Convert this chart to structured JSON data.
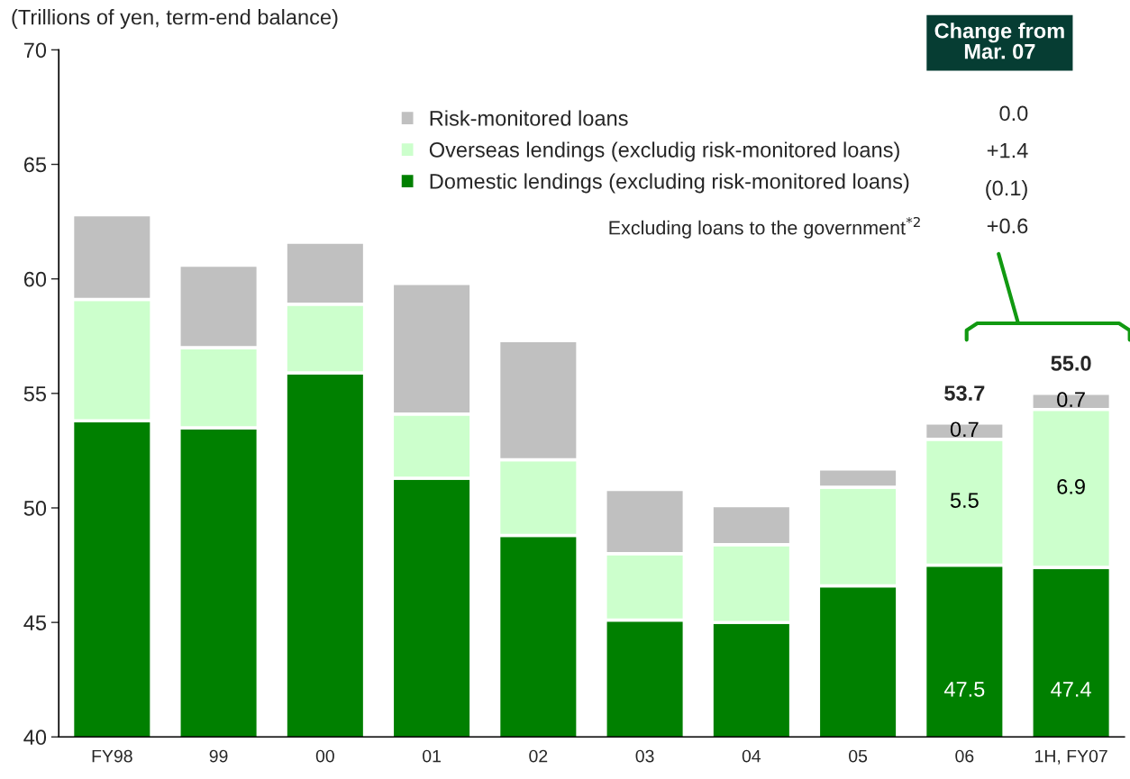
{
  "chart_data": {
    "type": "bar",
    "stacked": true,
    "categories": [
      "FY98",
      "99",
      "00",
      "01",
      "02",
      "03",
      "04",
      "05",
      "06",
      "1H, FY07"
    ],
    "series": [
      {
        "name": "Domestic lendings (excluding risk-monitored loans)",
        "color": "#008000",
        "values": [
          53.8,
          53.5,
          55.9,
          51.3,
          48.8,
          45.1,
          45.0,
          46.6,
          47.5,
          47.4
        ],
        "value_labels": [
          null,
          null,
          null,
          null,
          null,
          null,
          null,
          null,
          "47.5",
          "47.4"
        ]
      },
      {
        "name": "Overseas lendings (excludig risk-monitored loans)",
        "color": "#ccffcc",
        "base": [
          53.8,
          53.5,
          55.9,
          51.3,
          48.8,
          45.1,
          45.0,
          46.6,
          47.5,
          47.4
        ],
        "values": [
          5.3,
          3.5,
          3.0,
          2.8,
          3.3,
          2.9,
          3.4,
          4.3,
          5.5,
          6.9
        ],
        "value_labels": [
          null,
          null,
          null,
          null,
          null,
          null,
          null,
          null,
          "5.5",
          "6.9"
        ]
      },
      {
        "name": "Risk-monitored loans",
        "color": "#c0c0c0",
        "base": [
          59.1,
          57.0,
          58.9,
          54.1,
          52.1,
          48.0,
          48.4,
          50.9,
          53.0,
          54.3
        ],
        "values": [
          3.7,
          3.6,
          2.7,
          5.7,
          5.2,
          2.8,
          1.7,
          0.8,
          0.7,
          0.7
        ],
        "value_labels": [
          null,
          null,
          null,
          null,
          null,
          null,
          null,
          null,
          "0.7",
          "0.7"
        ]
      }
    ],
    "totals": [
      null,
      null,
      null,
      null,
      null,
      null,
      null,
      null,
      "53.7",
      "55.0"
    ],
    "ylim": [
      40,
      70
    ],
    "yticks": [
      40,
      45,
      50,
      55,
      60,
      65,
      70
    ],
    "legend": "top",
    "annotations": [
      "(Trillions of yen, term-end balance)",
      "Change from\nMar. 07",
      "0.0",
      "+1.4",
      "(0.1)",
      "Excluding loans to the government$^{*2}$",
      "+0.6"
    ]
  }
}
